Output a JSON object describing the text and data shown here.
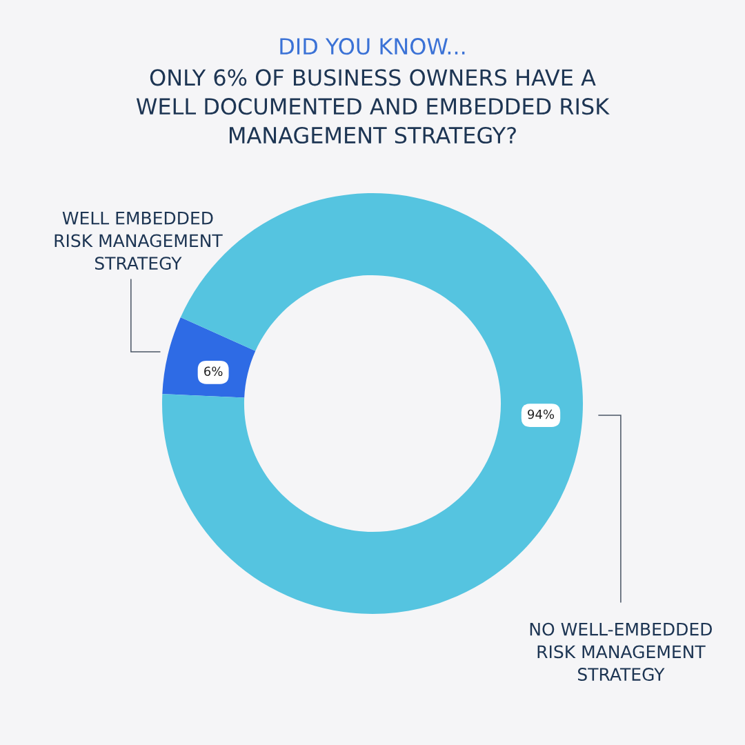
{
  "chart_data": {
    "type": "donut",
    "title": "DID YOU KNOW...",
    "subtitle": "ONLY 6% OF BUSINESS OWNERS HAVE A\nWELL DOCUMENTED AND EMBEDDED RISK\nMANAGEMENT STRATEGY?",
    "categories": [
      "WELL EMBEDDED\nRISK MANAGEMENT\nSTRATEGY",
      "NO WELL-EMBEDDED\nRISK MANAGEMENT\nSTRATEGY"
    ],
    "values": [
      6,
      94
    ],
    "colors": [
      "#2e6be5",
      "#55c4e0"
    ],
    "value_labels": [
      "6%",
      "94%"
    ]
  }
}
